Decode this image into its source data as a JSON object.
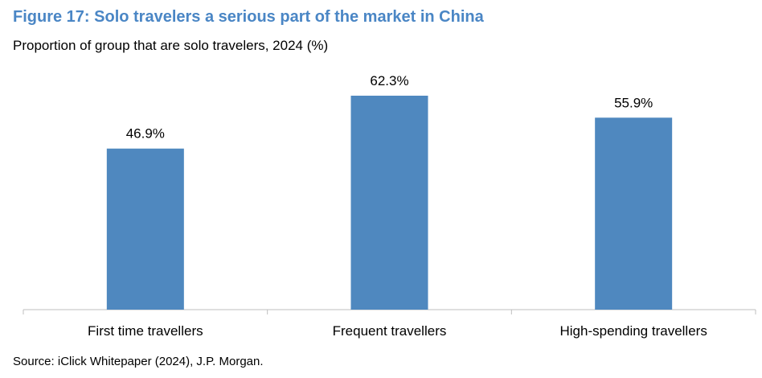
{
  "figure": {
    "title": "Figure 17: Solo travelers a serious part of the market in China",
    "subtitle": "Proportion of group that are solo travelers, 2024 (%)",
    "source": "Source: iClick Whitepaper (2024), J.P. Morgan."
  },
  "colors": {
    "title": "#4a86c5",
    "bar": "#4f88bf",
    "axis": "#bfbfbf"
  },
  "chart_data": {
    "type": "bar",
    "categories": [
      "First time travellers",
      "Frequent travellers",
      "High-spending travellers"
    ],
    "values": [
      46.9,
      62.3,
      55.9
    ],
    "data_labels": [
      "46.9%",
      "62.3%",
      "55.9%"
    ],
    "unit": "%",
    "ylim": [
      0,
      70
    ],
    "grid": false,
    "legend": "none"
  }
}
